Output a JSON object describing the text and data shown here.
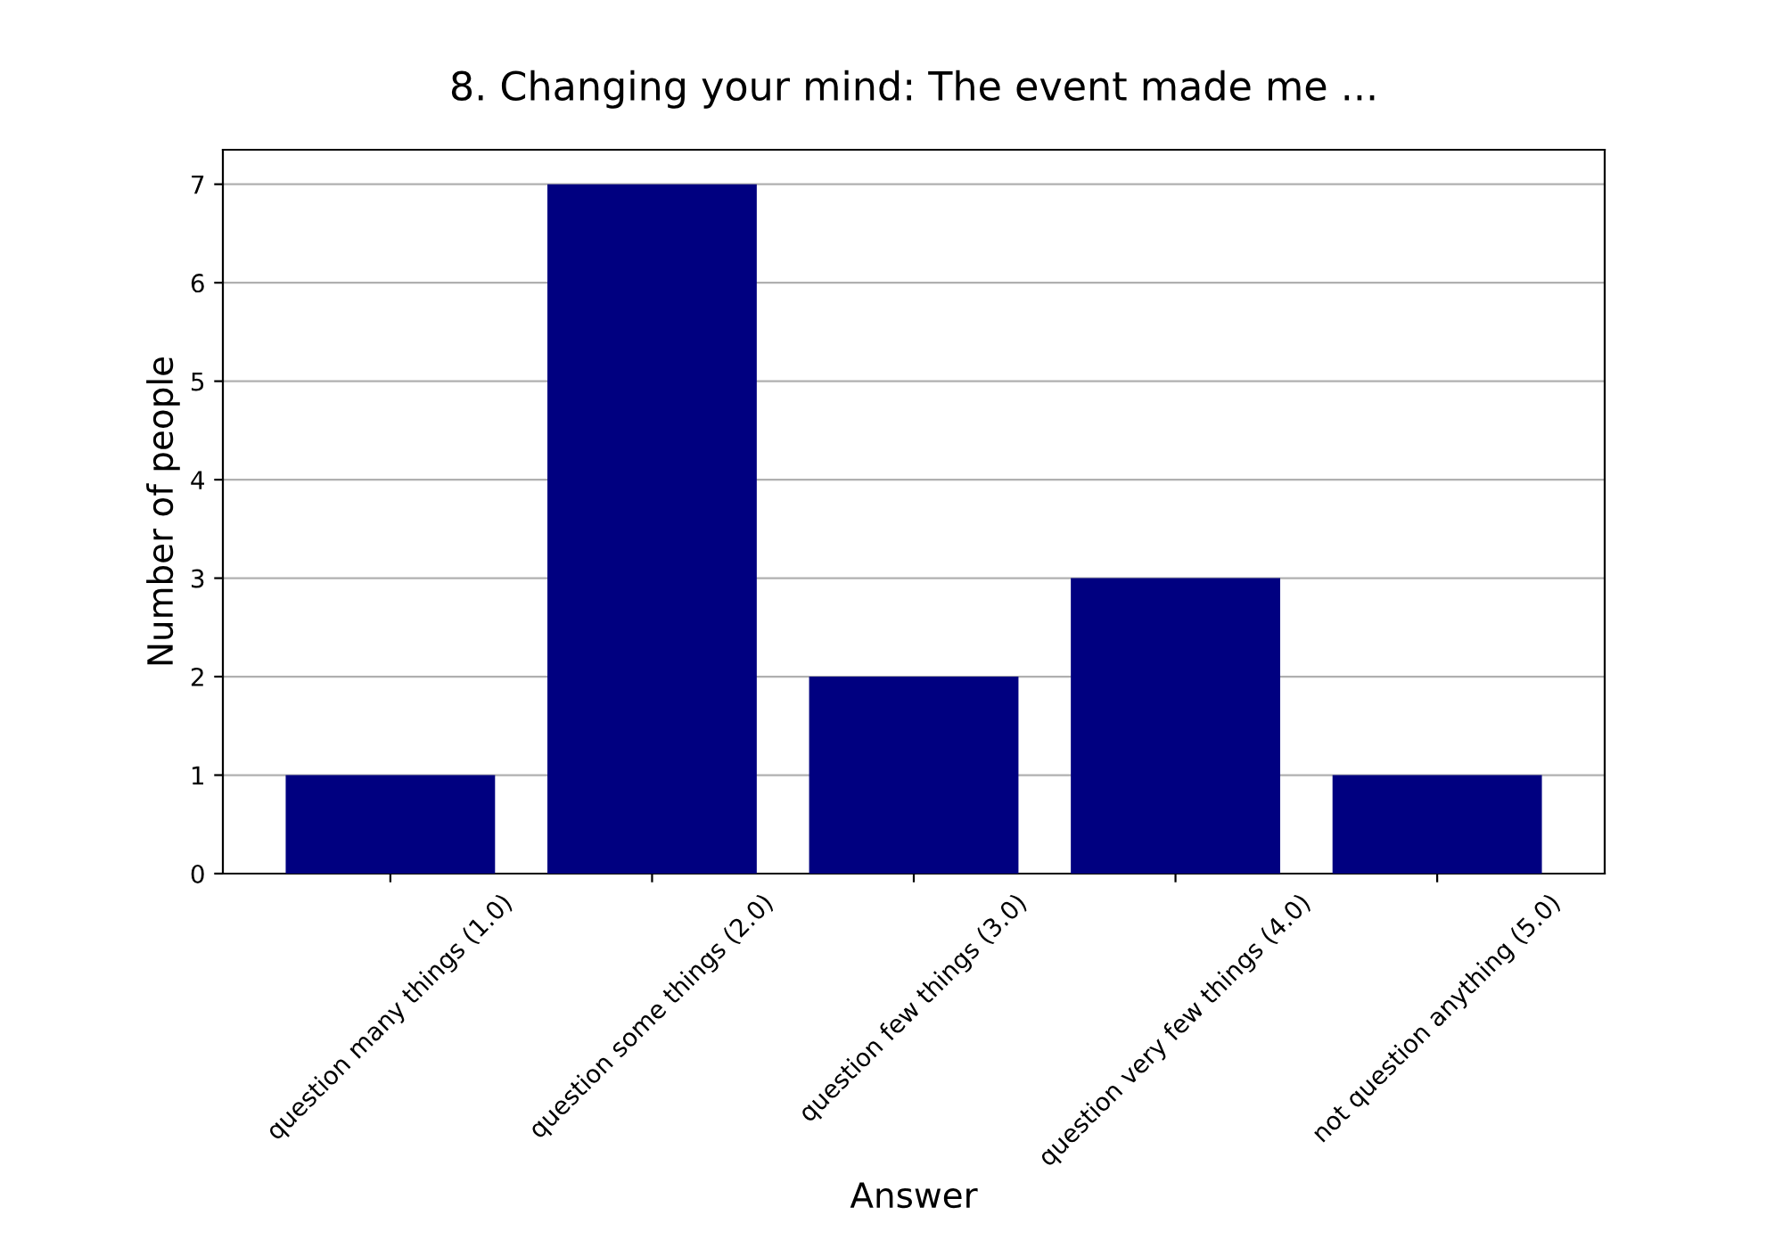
{
  "chart_data": {
    "type": "bar",
    "title": "8. Changing your mind: The event made me ...",
    "xlabel": "Answer",
    "ylabel": "Number of people",
    "categories": [
      "question many things (1.0)",
      "question some things (2.0)",
      "question few things (3.0)",
      "question very few things (4.0)",
      "not question anything (5.0)"
    ],
    "values": [
      1,
      7,
      2,
      3,
      1
    ],
    "color": "#000080",
    "ylim": [
      0,
      7.35
    ],
    "yticks": [
      0,
      1,
      2,
      3,
      4,
      5,
      6,
      7
    ],
    "grid": "y"
  }
}
